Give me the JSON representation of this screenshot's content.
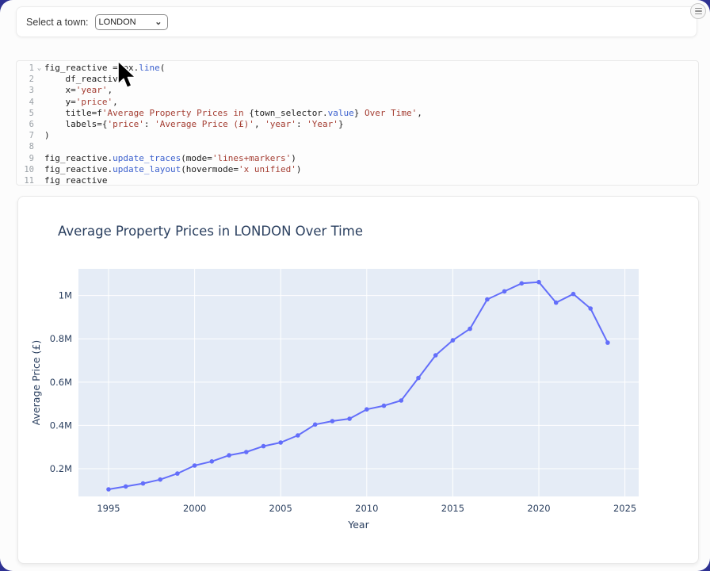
{
  "app": {
    "menu_button": {
      "icon": "hamburger-icon"
    }
  },
  "select_panel": {
    "label": "Select a town:",
    "dropdown_value": "LONDON",
    "dropdown_options": [
      "LONDON"
    ],
    "chevron_icon": "chevron-down-icon",
    "chevron_glyph": "⌄"
  },
  "code_editor": {
    "fold_marker": "⌄",
    "lines": [
      {
        "n": 1,
        "text": "fig_reactive = px.line(",
        "fold": true
      },
      {
        "n": 2,
        "text": "    df_reactive,"
      },
      {
        "n": 3,
        "text": "    x='year',"
      },
      {
        "n": 4,
        "text": "    y='price',"
      },
      {
        "n": 5,
        "text": "    title=f'Average Property Prices in {town_selector.value} Over Time',"
      },
      {
        "n": 6,
        "text": "    labels={'price': 'Average Price (£)', 'year': 'Year'}"
      },
      {
        "n": 7,
        "text": ")"
      },
      {
        "n": 8,
        "text": ""
      },
      {
        "n": 9,
        "text": "fig_reactive.update_traces(mode='lines+markers')"
      },
      {
        "n": 10,
        "text": "fig_reactive.update_layout(hovermode='x unified')"
      },
      {
        "n": 11,
        "text": "fig_reactive"
      }
    ]
  },
  "chart_data": {
    "type": "line",
    "mode": "lines+markers",
    "title": "Average Property Prices in LONDON Over Time",
    "xlabel": "Year",
    "ylabel": "Average Price (£)",
    "legend": "none",
    "grid": true,
    "x": [
      1995,
      1996,
      1997,
      1998,
      1999,
      2000,
      2001,
      2002,
      2003,
      2004,
      2005,
      2006,
      2007,
      2008,
      2009,
      2010,
      2011,
      2012,
      2013,
      2014,
      2015,
      2016,
      2017,
      2018,
      2019,
      2020,
      2021,
      2022,
      2023,
      2024
    ],
    "values_millions": [
      0.105,
      0.118,
      0.132,
      0.15,
      0.178,
      0.215,
      0.234,
      0.262,
      0.277,
      0.304,
      0.321,
      0.354,
      0.404,
      0.42,
      0.431,
      0.474,
      0.491,
      0.515,
      0.619,
      0.724,
      0.793,
      0.846,
      0.982,
      1.019,
      1.056,
      1.062,
      0.967,
      1.007,
      0.94,
      0.782
    ],
    "xlim": [
      1993.25,
      2025.8
    ],
    "ylim_millions": [
      0.072,
      1.123
    ],
    "xticks": [
      1995,
      2000,
      2005,
      2010,
      2015,
      2020,
      2025
    ],
    "yticks": [
      {
        "v": 0.2,
        "label": "0.2M"
      },
      {
        "v": 0.4,
        "label": "0.4M"
      },
      {
        "v": 0.6,
        "label": "0.6M"
      },
      {
        "v": 0.8,
        "label": "0.8M"
      },
      {
        "v": 1.0,
        "label": "1M"
      }
    ],
    "line_color": "#636efa",
    "plot_bg": "#e5ecf6",
    "grid_color": "#ffffff",
    "text_color": "#2a3f5f"
  },
  "colors": {
    "frame_background": "#2e3192",
    "card_background": "#ffffff",
    "code_string": "#a43d32",
    "code_property": "#3a5fcd"
  }
}
